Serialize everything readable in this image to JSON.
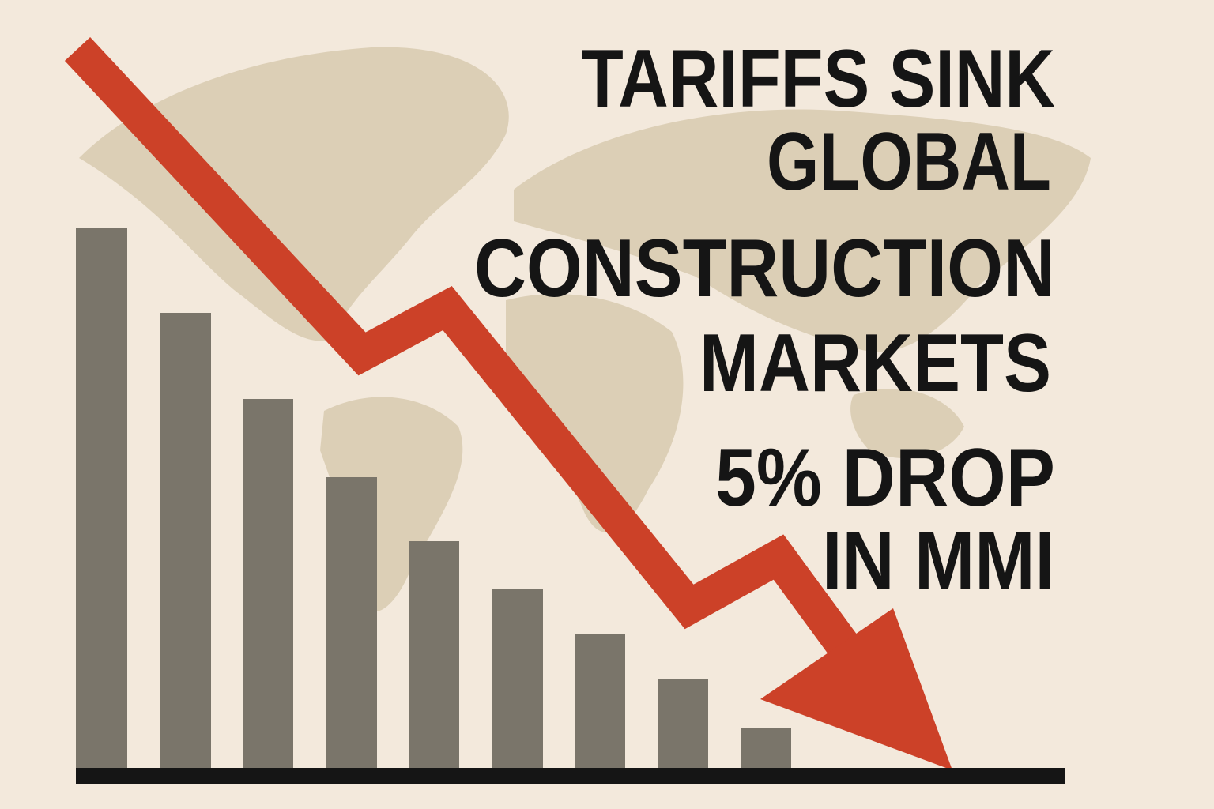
{
  "headline": {
    "lines": [
      "TARIFFS SINK",
      "GLOBAL",
      "CONSTRUCTION",
      "MARKETS"
    ]
  },
  "subhead": {
    "lines": [
      "5% DROP",
      "IN MMI"
    ]
  }
}
